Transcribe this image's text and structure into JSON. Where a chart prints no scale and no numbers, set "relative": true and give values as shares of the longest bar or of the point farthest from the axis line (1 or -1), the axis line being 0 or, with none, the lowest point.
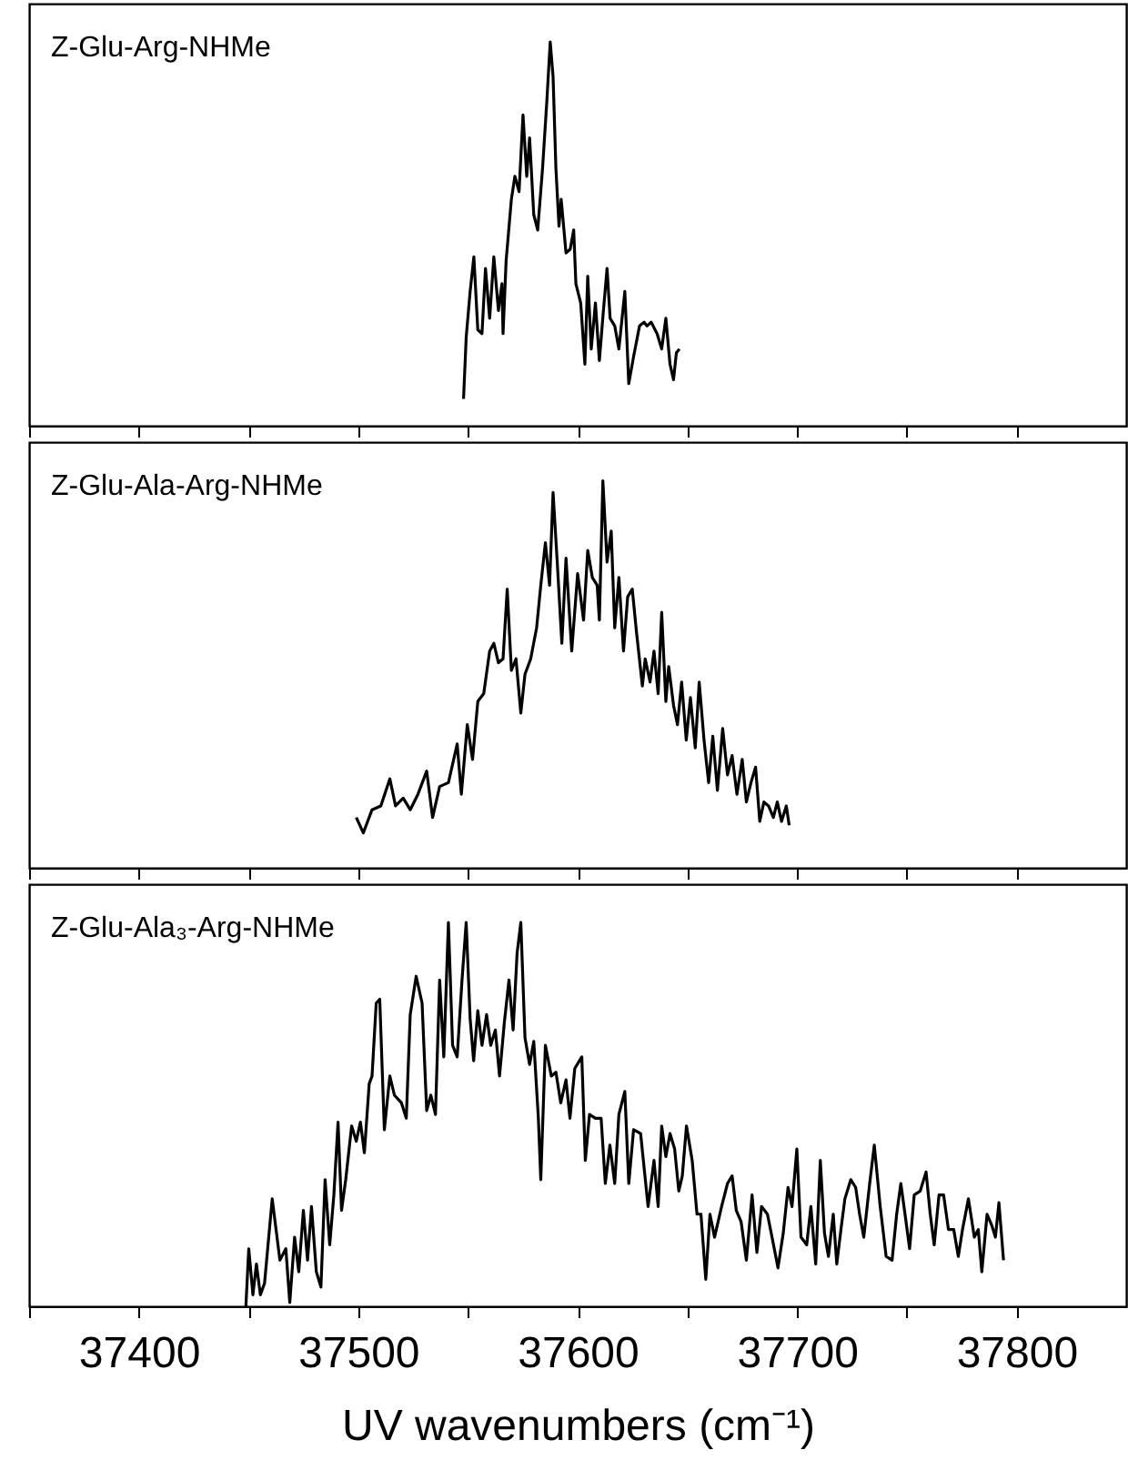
{
  "chart_data": [
    {
      "type": "line",
      "relative": true,
      "tick_labels": false,
      "annotations": [
        "Z-Glu-Arg-NHMe"
      ],
      "xlim": [
        37350,
        37850
      ],
      "xticks": [
        {
          "value": 37350,
          "label": null
        },
        {
          "value": 37400,
          "label": null
        },
        {
          "value": 37450,
          "label": null
        },
        {
          "value": 37500,
          "label": null
        },
        {
          "value": 37550,
          "label": null
        },
        {
          "value": 37600,
          "label": null
        },
        {
          "value": 37650,
          "label": null
        },
        {
          "value": 37700,
          "label": null
        },
        {
          "value": 37750,
          "label": null
        },
        {
          "value": 37800,
          "label": null
        }
      ],
      "series": [
        {
          "color": "#000000",
          "x": [
            37548.0,
            37549.2,
            37551.0,
            37552.7,
            37554.5,
            37556.4,
            37558.0,
            37559.9,
            37561.8,
            37563.9,
            37565.5,
            37566.0,
            37567.4,
            37569.8,
            37571.4,
            37573.3,
            37575.1,
            37576.8,
            37578.1,
            37580.0,
            37581.8,
            37584.0,
            37585.9,
            37587.5,
            37588.8,
            37590.1,
            37591.5,
            37592.5,
            37594.7,
            37596.6,
            37598.2,
            37599.2,
            37601.4,
            37603.3,
            37604.6,
            37606.2,
            37608.1,
            37609.9,
            37611.6,
            37613.4,
            37614.8,
            37616.9,
            37618.8,
            37621.5,
            37623.3,
            37625.5,
            37628.2,
            37630.3,
            37631.6,
            37633.5,
            37636.2,
            37638.3,
            37640.2,
            37642.1,
            37643.7,
            37645.0,
            37646.4
          ],
          "values": [
            0.07,
            0.23,
            0.35,
            0.44,
            0.25,
            0.24,
            0.41,
            0.28,
            0.44,
            0.3,
            0.37,
            0.24,
            0.43,
            0.59,
            0.65,
            0.61,
            0.81,
            0.65,
            0.75,
            0.55,
            0.51,
            0.67,
            0.84,
            1.0,
            0.91,
            0.67,
            0.52,
            0.59,
            0.45,
            0.46,
            0.51,
            0.37,
            0.32,
            0.16,
            0.39,
            0.2,
            0.32,
            0.17,
            0.29,
            0.41,
            0.28,
            0.26,
            0.2,
            0.35,
            0.11,
            0.18,
            0.26,
            0.27,
            0.26,
            0.27,
            0.24,
            0.2,
            0.28,
            0.16,
            0.12,
            0.19,
            0.2
          ]
        }
      ]
    },
    {
      "type": "line",
      "relative": true,
      "tick_labels": false,
      "annotations": [
        "Z-Glu-Ala-Arg-NHMe"
      ],
      "xlim": [
        37350,
        37850
      ],
      "xticks": [
        {
          "value": 37350,
          "label": null
        },
        {
          "value": 37400,
          "label": null
        },
        {
          "value": 37450,
          "label": null
        },
        {
          "value": 37500,
          "label": null
        },
        {
          "value": 37550,
          "label": null
        },
        {
          "value": 37600,
          "label": null
        },
        {
          "value": 37650,
          "label": null
        },
        {
          "value": 37700,
          "label": null
        },
        {
          "value": 37750,
          "label": null
        },
        {
          "value": 37800,
          "label": null
        }
      ],
      "series": [
        {
          "color": "#000000",
          "x": [
            37499.1,
            37502.3,
            37506.3,
            37510.3,
            37514.4,
            37517.0,
            37520.5,
            37523.7,
            37527.2,
            37531.2,
            37533.9,
            37537.1,
            37541.1,
            37545.1,
            37547.0,
            37549.7,
            37552.1,
            37554.5,
            37557.2,
            37559.9,
            37561.8,
            37563.9,
            37566.0,
            37567.9,
            37569.8,
            37571.9,
            37574.1,
            37576.0,
            37578.6,
            37581.3,
            37583.2,
            37585.3,
            37587.2,
            37588.8,
            37590.7,
            37592.8,
            37594.7,
            37597.3,
            37600.0,
            37602.7,
            37604.6,
            37606.7,
            37608.9,
            37609.9,
            37611.5,
            37613.4,
            37615.3,
            37616.9,
            37618.8,
            37620.9,
            37622.8,
            37624.9,
            37626.8,
            37629.5,
            37630.8,
            37633.0,
            37634.8,
            37636.7,
            37638.3,
            37640.2,
            37641.5,
            37643.7,
            37645.5,
            37647.4,
            37649.5,
            37651.4,
            37653.6,
            37655.4,
            37657.6,
            37659.7,
            37661.6,
            37663.7,
            37666.1,
            37668.3,
            37670.4,
            37672.6,
            37675.0,
            37676.9,
            37679.0,
            37681.1,
            37683.0,
            37684.9,
            37687.0,
            37689.2,
            37691.0,
            37692.9,
            37695.1,
            37696.4
          ],
          "values": [
            0.13,
            0.09,
            0.15,
            0.16,
            0.23,
            0.16,
            0.18,
            0.15,
            0.19,
            0.25,
            0.13,
            0.21,
            0.22,
            0.32,
            0.19,
            0.37,
            0.28,
            0.43,
            0.45,
            0.56,
            0.58,
            0.53,
            0.54,
            0.72,
            0.51,
            0.54,
            0.4,
            0.5,
            0.54,
            0.62,
            0.73,
            0.84,
            0.73,
            0.97,
            0.79,
            0.58,
            0.8,
            0.56,
            0.76,
            0.64,
            0.82,
            0.75,
            0.73,
            0.64,
            1.0,
            0.79,
            0.87,
            0.62,
            0.75,
            0.56,
            0.7,
            0.72,
            0.61,
            0.47,
            0.54,
            0.48,
            0.56,
            0.45,
            0.66,
            0.43,
            0.52,
            0.42,
            0.37,
            0.48,
            0.33,
            0.44,
            0.31,
            0.48,
            0.33,
            0.22,
            0.34,
            0.2,
            0.36,
            0.24,
            0.29,
            0.19,
            0.28,
            0.17,
            0.22,
            0.26,
            0.12,
            0.17,
            0.16,
            0.13,
            0.17,
            0.12,
            0.16,
            0.11
          ]
        }
      ]
    },
    {
      "type": "line",
      "relative": true,
      "tick_labels": "x",
      "annotations": [
        "Z-Glu-Ala₃-Arg-NHMe"
      ],
      "xlabel": "UV wavenumbers (cm⁻¹)",
      "xlim": [
        37350,
        37850
      ],
      "xticks": [
        {
          "value": 37350,
          "label": null
        },
        37400,
        {
          "value": 37450,
          "label": null
        },
        37500,
        {
          "value": 37550,
          "label": null
        },
        37600,
        {
          "value": 37650,
          "label": null
        },
        37700,
        {
          "value": 37750,
          "label": null
        },
        37800
      ],
      "series": [
        {
          "color": "#000000",
          "x": [
            37448.8,
            37450.1,
            37452.0,
            37453.6,
            37455.4,
            37457.3,
            37460.8,
            37464.3,
            37467.0,
            37468.8,
            37471.0,
            37472.9,
            37475.0,
            37476.9,
            37478.7,
            37480.9,
            37483.0,
            37484.9,
            37487.0,
            37488.9,
            37490.8,
            37492.4,
            37494.3,
            37497.0,
            37499.1,
            37501.0,
            37502.8,
            37505.0,
            37506.3,
            37508.2,
            37509.8,
            37511.9,
            37514.4,
            37516.5,
            37519.7,
            37521.9,
            37523.7,
            37526.4,
            37529.1,
            37531.2,
            37533.1,
            37535.2,
            37537.1,
            37539.0,
            37541.1,
            37543.0,
            37545.1,
            37547.3,
            37549.2,
            37551.0,
            37552.6,
            37554.5,
            37556.4,
            37558.5,
            37560.4,
            37562.5,
            37564.4,
            37566.6,
            37568.7,
            37570.6,
            37572.4,
            37574.1,
            37576.0,
            37578.1,
            37580.0,
            37582.1,
            37583.2,
            37585.3,
            37588.0,
            37590.1,
            37592.3,
            37594.7,
            37596.5,
            37598.7,
            37601.9,
            37603.5,
            37605.4,
            37608.1,
            37610.7,
            37612.6,
            37614.7,
            37616.9,
            37618.8,
            37621.5,
            37623.3,
            37625.5,
            37628.7,
            37632.1,
            37634.8,
            37636.7,
            37638.3,
            37640.2,
            37642.1,
            37644.2,
            37646.1,
            37647.7,
            37649.6,
            37652.2,
            37654.4,
            37656.2,
            37658.4,
            37660.3,
            37662.4,
            37665.6,
            37668.3,
            37670.4,
            37672.3,
            37674.5,
            37676.9,
            37679.5,
            37681.7,
            37683.8,
            37686.5,
            37688.6,
            37691.3,
            37693.7,
            37695.9,
            37697.7,
            37699.9,
            37701.8,
            37704.4,
            37706.3,
            37708.5,
            37710.6,
            37712.5,
            37714.3,
            37716.5,
            37718.1,
            37720.0,
            37721.8,
            37724.5,
            37726.7,
            37728.5,
            37730.4,
            37733.1,
            37735.2,
            37737.9,
            37740.6,
            37743.3,
            37745.4,
            37747.3,
            37749.2,
            37751.3,
            37753.4,
            37756.1,
            37758.8,
            37760.7,
            37762.5,
            37764.7,
            37766.8,
            37769.0,
            37771.4,
            37773.5,
            37775.4,
            37778.1,
            37780.8,
            37782.6,
            37784.2,
            37786.6,
            37788.8,
            37790.4,
            37792.0,
            37794.1
          ],
          "values": [
            0.0,
            0.15,
            0.03,
            0.11,
            0.03,
            0.06,
            0.28,
            0.12,
            0.15,
            0.01,
            0.18,
            0.09,
            0.25,
            0.12,
            0.26,
            0.09,
            0.05,
            0.33,
            0.16,
            0.29,
            0.48,
            0.25,
            0.33,
            0.47,
            0.43,
            0.48,
            0.4,
            0.58,
            0.6,
            0.79,
            0.8,
            0.46,
            0.6,
            0.55,
            0.53,
            0.49,
            0.76,
            0.86,
            0.79,
            0.51,
            0.55,
            0.5,
            0.85,
            0.65,
            1.0,
            0.68,
            0.65,
            0.85,
            1.0,
            0.75,
            0.64,
            0.77,
            0.68,
            0.76,
            0.68,
            0.72,
            0.6,
            0.74,
            0.85,
            0.72,
            0.92,
            1.0,
            0.7,
            0.63,
            0.69,
            0.49,
            0.33,
            0.68,
            0.6,
            0.61,
            0.53,
            0.59,
            0.49,
            0.62,
            0.65,
            0.38,
            0.5,
            0.49,
            0.49,
            0.32,
            0.42,
            0.32,
            0.5,
            0.56,
            0.32,
            0.46,
            0.45,
            0.26,
            0.38,
            0.26,
            0.47,
            0.39,
            0.45,
            0.41,
            0.3,
            0.34,
            0.47,
            0.38,
            0.24,
            0.24,
            0.07,
            0.24,
            0.18,
            0.26,
            0.32,
            0.34,
            0.25,
            0.22,
            0.12,
            0.29,
            0.14,
            0.26,
            0.24,
            0.18,
            0.1,
            0.19,
            0.31,
            0.26,
            0.41,
            0.18,
            0.16,
            0.26,
            0.11,
            0.38,
            0.19,
            0.13,
            0.24,
            0.11,
            0.2,
            0.28,
            0.33,
            0.31,
            0.24,
            0.18,
            0.32,
            0.42,
            0.26,
            0.13,
            0.12,
            0.24,
            0.32,
            0.24,
            0.15,
            0.29,
            0.3,
            0.35,
            0.24,
            0.16,
            0.29,
            0.29,
            0.2,
            0.2,
            0.13,
            0.2,
            0.28,
            0.18,
            0.2,
            0.09,
            0.24,
            0.21,
            0.18,
            0.27,
            0.12
          ]
        }
      ]
    }
  ]
}
